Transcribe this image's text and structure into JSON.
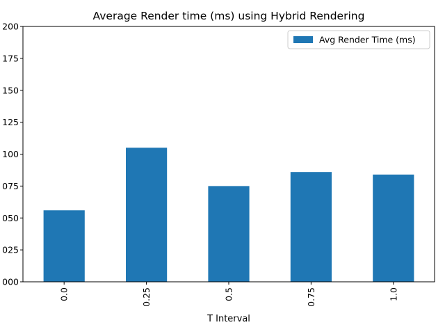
{
  "chart_data": {
    "type": "bar",
    "title": "Average Render time (ms) using Hybrid Rendering",
    "xlabel": "T Interval",
    "ylabel": "",
    "categories": [
      "0.0",
      "0.25",
      "0.5",
      "0.75",
      "1.0"
    ],
    "series": [
      {
        "name": "Avg Render Time (ms)",
        "values": [
          0.056,
          0.105,
          0.075,
          0.086,
          0.084
        ],
        "color": "#1f77b4"
      }
    ],
    "ylim": [
      0,
      0.2
    ],
    "yticks": [
      0,
      0.025,
      0.05,
      0.075,
      0.1,
      0.125,
      0.15,
      0.175,
      0.2
    ],
    "ytick_labels": [
      "000",
      "025",
      "050",
      "075",
      "100",
      "125",
      "150",
      "175",
      "200"
    ],
    "grid": false,
    "legend_position": "top-right",
    "x_tick_rotation": 90
  }
}
